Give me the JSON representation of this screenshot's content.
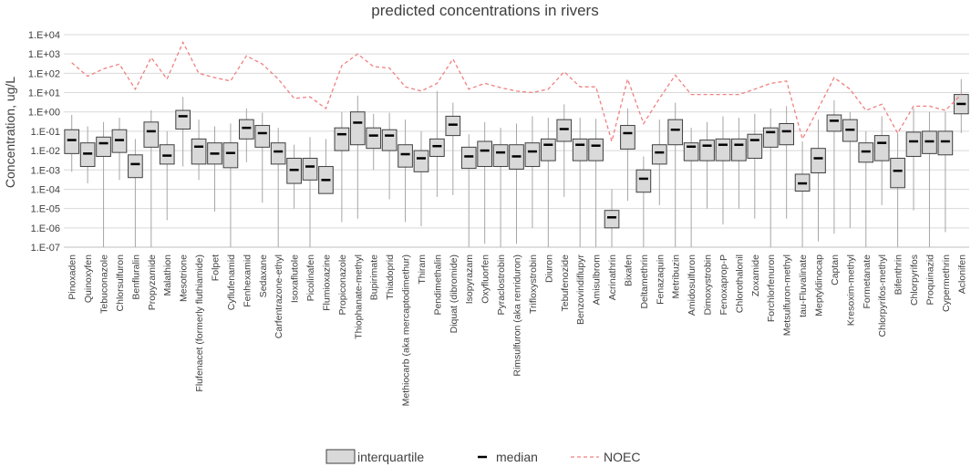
{
  "chart_data": {
    "type": "box",
    "title": "predicted concentrations in rivers",
    "ylabel": "Concentration, ug/L",
    "yscale": "log",
    "ylim": [
      1e-07,
      10000.0
    ],
    "yticks": [
      "1.E-07",
      "1.E-06",
      "1.E-05",
      "1.E-04",
      "1.E-03",
      "1.E-02",
      "1.E-01",
      "1.E+00",
      "1.E+01",
      "1.E+02",
      "1.E+03",
      "1.E+04"
    ],
    "legend": {
      "interquartile": "interquartile",
      "median": "median",
      "noec": "NOEC"
    },
    "categories": [
      "Pinoxaden",
      "Quinoxyfen",
      "Tebuconazole",
      "Chlorsulfuron",
      "Benfluralin",
      "Propyzamide",
      "Malathion",
      "Mesotrione",
      "Flufenacet (formerly fluthiamide)",
      "Folpet",
      "Cyflufenamid",
      "Fenhexamid",
      "Sedaxane",
      "Carfentrazone-ethyl",
      "Isoxaflutole",
      "Picolinafen",
      "Flumioxazine",
      "Propiconazole",
      "Thiophanate-methyl",
      "Bupirimate",
      "Thiadoprid",
      "Methiocarb (aka mercaptodimethur)",
      "Thiram",
      "Pendimethalin",
      "Diquat (dibromide)",
      "Isopyrazam",
      "Oxyfluorfen",
      "Pyraclostrobin",
      "Rimsulfuron (aka renriduron)",
      "Trifloxystrobin",
      "Diuron",
      "Tebufenozide",
      "Benzovindiflupyr",
      "Amisulbrom",
      "Acrinathrin",
      "Bixafen",
      "Deltamethrin",
      "Fenazaquin",
      "Metribuzin",
      "Amidosulfuron",
      "Dimoxystrobin",
      "Fenoxaprop-P",
      "Chlorothalonil",
      "Zoxamide",
      "Forchlorfenuron",
      "Metsulfuron-methyl",
      "tau-Fluvalinate",
      "Meptyldinocap",
      "Captan",
      "Kresoxim-methyl",
      "Formetanate",
      "Chlorpyrifos-methyl",
      "Bifenthrin",
      "Chlorpyrifos",
      "Proquinazid",
      "Cypermethrin",
      "Aclonifen"
    ],
    "series": [
      {
        "name": "whisker_min",
        "values": [
          0.0008,
          0.0002,
          1e-07,
          0.0003,
          1e-07,
          1e-07,
          2.5e-06,
          0.0015,
          0.0003,
          7e-06,
          1e-07,
          0.0025,
          2e-05,
          1e-07,
          1e-05,
          1e-07,
          8e-05,
          2e-06,
          3e-06,
          0.001,
          3e-05,
          2e-06,
          1.2e-06,
          4e-05,
          5e-05,
          1e-07,
          1.5e-07,
          1e-07,
          1.5e-07,
          1e-06,
          1e-07,
          4e-05,
          1e-07,
          1e-07,
          1e-07,
          2.5e-05,
          1e-07,
          1.5e-05,
          1e-07,
          1e-07,
          1e-05,
          1.5e-06,
          1e-05,
          3e-06,
          1e-07,
          3e-06,
          1e-07,
          2e-07,
          5e-07,
          1e-06,
          1e-07,
          1.5e-05,
          1e-07,
          8e-06,
          1e-07,
          6e-07,
          0.08
        ]
      },
      {
        "name": "q1",
        "values": [
          0.007,
          0.0015,
          0.005,
          0.008,
          0.0004,
          0.015,
          0.002,
          0.13,
          0.002,
          0.002,
          0.0013,
          0.04,
          0.015,
          0.002,
          0.0002,
          0.0003,
          6e-05,
          0.01,
          0.02,
          0.013,
          0.01,
          0.0014,
          0.0008,
          0.005,
          0.06,
          0.0012,
          0.0015,
          0.0015,
          0.0011,
          0.0015,
          0.003,
          0.03,
          0.003,
          0.003,
          1e-06,
          0.012,
          7e-05,
          0.002,
          0.02,
          0.003,
          0.003,
          0.003,
          0.003,
          0.004,
          0.015,
          0.02,
          8e-05,
          0.0007,
          0.1,
          0.03,
          0.0025,
          0.003,
          0.00012,
          0.005,
          0.007,
          0.006,
          0.8
        ]
      },
      {
        "name": "median",
        "values": [
          0.035,
          0.007,
          0.024,
          0.035,
          0.002,
          0.1,
          0.0055,
          0.6,
          0.016,
          0.007,
          0.0075,
          0.15,
          0.08,
          0.009,
          0.001,
          0.0015,
          0.0003,
          0.07,
          0.28,
          0.06,
          0.06,
          0.0065,
          0.004,
          0.017,
          0.22,
          0.005,
          0.01,
          0.008,
          0.005,
          0.009,
          0.02,
          0.13,
          0.02,
          0.018,
          3.5e-06,
          0.08,
          0.00035,
          0.008,
          0.12,
          0.016,
          0.018,
          0.02,
          0.02,
          0.035,
          0.09,
          0.1,
          0.0002,
          0.004,
          0.35,
          0.12,
          0.009,
          0.025,
          0.0009,
          0.03,
          0.03,
          0.03,
          2.6
        ]
      },
      {
        "name": "q3",
        "values": [
          0.12,
          0.025,
          0.05,
          0.12,
          0.006,
          0.3,
          0.02,
          1.2,
          0.04,
          0.025,
          0.025,
          0.4,
          0.2,
          0.025,
          0.004,
          0.004,
          0.0015,
          0.15,
          1.0,
          0.15,
          0.12,
          0.02,
          0.01,
          0.04,
          0.6,
          0.015,
          0.03,
          0.02,
          0.02,
          0.025,
          0.04,
          0.4,
          0.04,
          0.04,
          8e-06,
          0.2,
          0.001,
          0.02,
          0.4,
          0.025,
          0.035,
          0.04,
          0.04,
          0.07,
          0.15,
          0.25,
          0.0006,
          0.013,
          0.7,
          0.4,
          0.025,
          0.06,
          0.004,
          0.09,
          0.1,
          0.1,
          8
        ]
      },
      {
        "name": "whisker_max",
        "values": [
          0.7,
          0.18,
          0.3,
          0.5,
          0.04,
          1.2,
          0.1,
          6,
          0.4,
          0.18,
          0.25,
          1.5,
          0.9,
          0.15,
          0.02,
          0.05,
          0.04,
          1.0,
          7,
          0.8,
          0.9,
          0.4,
          0.1,
          12,
          3,
          0.07,
          0.3,
          0.15,
          0.25,
          0.6,
          0.5,
          2.5,
          0.5,
          0.45,
          0.0001,
          1.5,
          0.005,
          0.4,
          3,
          0.15,
          0.3,
          0.6,
          0.5,
          0.8,
          1.5,
          2,
          0.03,
          0.4,
          4,
          1,
          0.1,
          0.6,
          0.08,
          1.5,
          1,
          1,
          50
        ]
      },
      {
        "name": "NOEC",
        "values": [
          350,
          70,
          170,
          300,
          15,
          650,
          50,
          4000,
          100,
          60,
          40,
          800,
          300,
          50,
          5,
          6,
          1.5,
          250,
          1000,
          220,
          190,
          20,
          12,
          30,
          550,
          15,
          30,
          18,
          12,
          10,
          15,
          120,
          20,
          20,
          0.03,
          50,
          0.25,
          5,
          80,
          8,
          8,
          8,
          8,
          15,
          30,
          40,
          0.04,
          1.5,
          60,
          15,
          1.2,
          2.5,
          0.08,
          2,
          2,
          1.2,
          8
        ]
      }
    ]
  }
}
